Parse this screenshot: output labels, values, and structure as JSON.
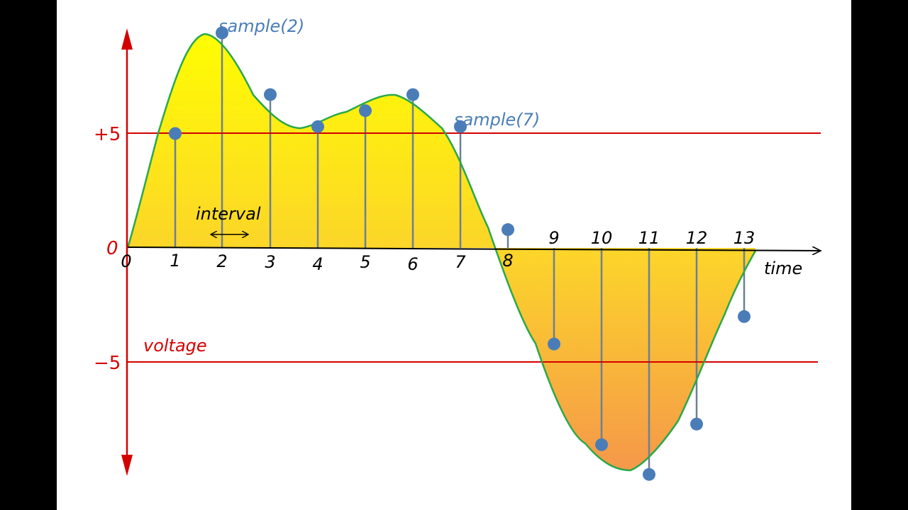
{
  "axes": {
    "y_labels": {
      "plus5": "+5",
      "zero": "0",
      "minus5": "−5"
    },
    "y_axis_label": "voltage",
    "x_axis_label": "time",
    "x_ticks_top": [
      "0",
      "1",
      "2",
      "3",
      "4",
      "5",
      "6",
      "7",
      "8"
    ],
    "x_ticks_bottom": [
      "9",
      "10",
      "11",
      "12",
      "13"
    ]
  },
  "annotations": {
    "sample2": "sample(2)",
    "sample7": "sample(7)",
    "interval": "interval"
  },
  "samples": [
    {
      "index": 1,
      "value": 5.0
    },
    {
      "index": 2,
      "value": 9.4
    },
    {
      "index": 3,
      "value": 6.7
    },
    {
      "index": 4,
      "value": 5.3
    },
    {
      "index": 5,
      "value": 6.0
    },
    {
      "index": 6,
      "value": 6.7
    },
    {
      "index": 7,
      "value": 5.3
    },
    {
      "index": 8,
      "value": 0.8
    },
    {
      "index": 9,
      "value": -4.2
    },
    {
      "index": 10,
      "value": -8.6
    },
    {
      "index": 11,
      "value": -9.9
    },
    {
      "index": 12,
      "value": -7.7
    },
    {
      "index": 13,
      "value": -3.0
    }
  ],
  "colors": {
    "curve": "#2aa84a",
    "sample_dot": "#4a7db8",
    "reference_line": "#d40000",
    "fill_top": "#ffff00",
    "fill_bottom": "#f5984a"
  }
}
